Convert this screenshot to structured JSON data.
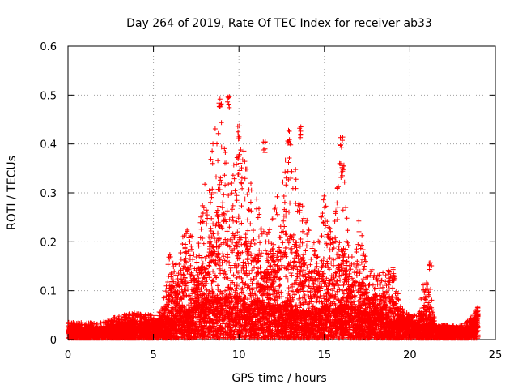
{
  "chart_data": {
    "type": "scatter",
    "title": "Day 264 of 2019, Rate Of TEC Index for receiver ab33",
    "xlabel": "GPS time / hours",
    "ylabel": "ROTI / TECUs",
    "xlim": [
      0,
      25
    ],
    "ylim": [
      0,
      0.6
    ],
    "xticks": [
      0,
      5,
      10,
      15,
      20,
      25
    ],
    "yticks": [
      0,
      0.1,
      0.2,
      0.3,
      0.4,
      0.5,
      0.6
    ],
    "grid": true,
    "marker": "+",
    "color": "#ff0000",
    "x_range_of_data": [
      0,
      24
    ],
    "envelope": {
      "x": [
        0,
        1,
        2,
        3,
        4,
        5,
        5.5,
        6,
        6.5,
        7,
        7.5,
        8,
        8.5,
        9,
        9.5,
        10,
        10.5,
        11,
        11.5,
        12,
        12.5,
        13,
        13.5,
        14,
        14.5,
        15,
        15.5,
        16,
        16.5,
        17,
        17.5,
        18,
        18.5,
        19,
        19.5,
        20,
        20.5,
        21,
        21.5,
        22,
        23,
        23.5,
        24
      ],
      "baseline": [
        0.015,
        0.015,
        0.015,
        0.02,
        0.02,
        0.025,
        0.03,
        0.04,
        0.05,
        0.05,
        0.06,
        0.07,
        0.07,
        0.08,
        0.07,
        0.08,
        0.06,
        0.07,
        0.06,
        0.06,
        0.06,
        0.06,
        0.05,
        0.05,
        0.05,
        0.06,
        0.05,
        0.06,
        0.06,
        0.05,
        0.05,
        0.05,
        0.04,
        0.03,
        0.03,
        0.03,
        0.02,
        0.025,
        0.02,
        0.015,
        0.015,
        0.015,
        0.04
      ],
      "peak": [
        0.035,
        0.035,
        0.035,
        0.05,
        0.055,
        0.05,
        0.06,
        0.2,
        0.18,
        0.25,
        0.18,
        0.32,
        0.42,
        0.5,
        0.31,
        0.44,
        0.35,
        0.3,
        0.22,
        0.26,
        0.34,
        0.43,
        0.3,
        0.25,
        0.2,
        0.3,
        0.2,
        0.42,
        0.15,
        0.26,
        0.15,
        0.14,
        0.14,
        0.15,
        0.07,
        0.05,
        0.05,
        0.16,
        0.03,
        0.03,
        0.03,
        0.04,
        0.07
      ]
    },
    "labeled_spikes": [
      {
        "x": 8.9,
        "y": 0.5
      },
      {
        "x": 9.4,
        "y": 0.5
      },
      {
        "x": 10.0,
        "y": 0.44
      },
      {
        "x": 11.5,
        "y": 0.41
      },
      {
        "x": 12.9,
        "y": 0.43
      },
      {
        "x": 13.6,
        "y": 0.44
      },
      {
        "x": 16.0,
        "y": 0.42
      },
      {
        "x": 16.1,
        "y": 0.36
      },
      {
        "x": 21.2,
        "y": 0.16
      }
    ]
  }
}
